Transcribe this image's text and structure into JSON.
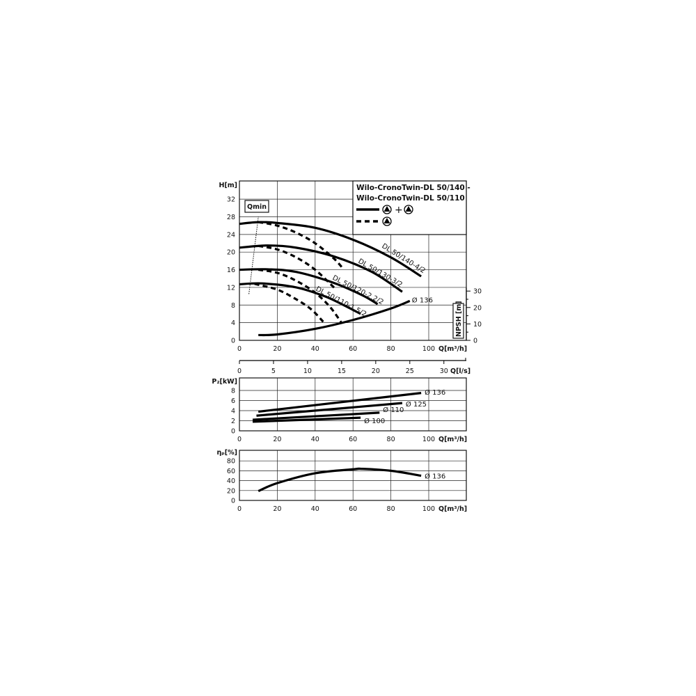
{
  "legend": {
    "title_line1": "Wilo-CronoTwin-DL 50/140 -",
    "title_line2": "Wilo-CronoTwin-DL 50/110",
    "solid_meaning": "+",
    "entries": [
      {
        "style": "solid",
        "icon": "pump-icon + pump-icon",
        "meaning": "twin operation"
      },
      {
        "style": "dashed",
        "icon": "pump-icon",
        "meaning": "single operation"
      }
    ]
  },
  "chart_data": [
    {
      "type": "line",
      "xlabel": "Q[m³/h]",
      "ylabel": "H[m]",
      "y2label": "NPSH [m]",
      "xlim": [
        0,
        120
      ],
      "ylim": [
        0,
        36
      ],
      "y2lim": [
        0,
        30
      ],
      "xticks": [
        0,
        20,
        40,
        60,
        80,
        100
      ],
      "yticks": [
        0,
        4,
        8,
        12,
        16,
        20,
        24,
        28,
        32
      ],
      "y2ticks": [
        0,
        10,
        20,
        30
      ],
      "grid": true,
      "qmin_label": "Qmin",
      "qmin_line": [
        [
          5,
          10.5
        ],
        [
          10,
          28
        ]
      ],
      "series": [
        {
          "name": "DL 50/140-4/2",
          "style": "solid",
          "x": [
            0,
            10,
            20,
            40,
            60,
            80,
            96
          ],
          "y": [
            26.4,
            26.8,
            26.6,
            25.5,
            22.8,
            18.8,
            14.5
          ]
        },
        {
          "name": "DL 50/130-3/2",
          "style": "solid",
          "x": [
            0,
            15,
            30,
            50,
            70,
            86
          ],
          "y": [
            21,
            21.5,
            21,
            19,
            15.5,
            11
          ]
        },
        {
          "name": "DL 50/120-2.2/2",
          "style": "solid",
          "x": [
            0,
            15,
            30,
            50,
            65,
            73
          ],
          "y": [
            16,
            16.1,
            15.5,
            13,
            10.2,
            8.2
          ]
        },
        {
          "name": "DL 50/110-1.5/2",
          "style": "solid",
          "x": [
            0,
            12,
            30,
            45,
            55,
            64
          ],
          "y": [
            12.7,
            12.9,
            12,
            10,
            8,
            6
          ]
        },
        {
          "style": "dashed",
          "x": [
            10,
            20,
            30,
            40,
            50,
            55
          ],
          "y": [
            26.8,
            26,
            24.4,
            22,
            18.5,
            16.1
          ]
        },
        {
          "style": "dashed",
          "x": [
            10,
            20,
            30,
            40,
            50.6
          ],
          "y": [
            21.4,
            20.6,
            18.8,
            16,
            11.7
          ]
        },
        {
          "style": "dashed",
          "x": [
            10,
            20,
            30,
            40,
            48,
            53.7
          ],
          "y": [
            16,
            15.3,
            13.5,
            10.8,
            7.5,
            4.1
          ]
        },
        {
          "style": "dashed",
          "x": [
            8,
            20,
            30,
            38,
            44.5
          ],
          "y": [
            12.8,
            11.5,
            9.3,
            7,
            4.1
          ]
        },
        {
          "name": "Ø 136",
          "axis": "NPSH",
          "style": "solid",
          "x": [
            10,
            20,
            40,
            60,
            80,
            90
          ],
          "y": [
            3.2,
            3.6,
            7,
            12.4,
            19.4,
            24
          ]
        }
      ]
    },
    {
      "type": "axis",
      "xlabel": "Q[l/s]",
      "xticks": [
        0,
        5,
        10,
        15,
        20,
        25,
        30
      ]
    },
    {
      "type": "line",
      "xlabel": "Q[m³/h]",
      "ylabel": "P₂[kW]",
      "xlim": [
        0,
        120
      ],
      "ylim": [
        0,
        10.5
      ],
      "xticks": [
        0,
        20,
        40,
        60,
        80,
        100
      ],
      "yticks": [
        0,
        2,
        4,
        6,
        8
      ],
      "grid": true,
      "series": [
        {
          "name": "Ø 136",
          "x": [
            10,
            96
          ],
          "y": [
            3.8,
            7.5
          ]
        },
        {
          "name": "Ø 125",
          "x": [
            9,
            86
          ],
          "y": [
            3.0,
            5.5
          ]
        },
        {
          "name": "Ø 110",
          "x": [
            7,
            74
          ],
          "y": [
            2.2,
            3.6
          ]
        },
        {
          "name": "Ø 100",
          "x": [
            7,
            64
          ],
          "y": [
            1.8,
            2.6
          ]
        }
      ]
    },
    {
      "type": "line",
      "xlabel": "Q[m³/h]",
      "ylabel": "ηₚ[%]",
      "xlim": [
        0,
        120
      ],
      "ylim": [
        0,
        100
      ],
      "xticks": [
        0,
        20,
        40,
        60,
        80,
        100
      ],
      "yticks": [
        0,
        20,
        40,
        60,
        80
      ],
      "grid": true,
      "series": [
        {
          "name": "Ø 136",
          "x": [
            10,
            20,
            40,
            60,
            65,
            80,
            96
          ],
          "y": [
            19,
            35,
            55,
            63,
            64,
            60,
            50
          ]
        }
      ]
    }
  ]
}
